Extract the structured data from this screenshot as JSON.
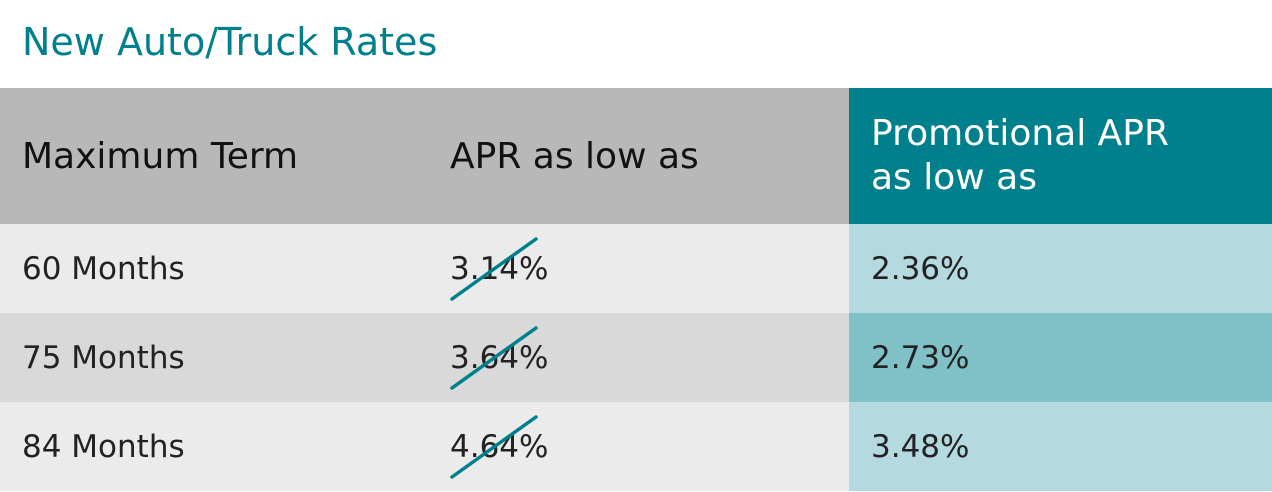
{
  "title": "New Auto/Truck Rates",
  "colors": {
    "accent": "#007f8c",
    "header_gray": "#b8b8b8",
    "row_light": "#ebebeb",
    "row_dark": "#d9d9d9",
    "promo_light": "#b4dadf",
    "promo_dark": "#80c0c7"
  },
  "table": {
    "headers": {
      "term": "Maximum Term",
      "apr": "APR as low as",
      "promo": "Promotional APR as low as"
    },
    "rows": [
      {
        "term": "60 Months",
        "apr": "3.14%",
        "promo": "2.36%"
      },
      {
        "term": "75 Months",
        "apr": "3.64%",
        "promo": "2.73%"
      },
      {
        "term": "84 Months",
        "apr": "4.64%",
        "promo": "3.48%"
      }
    ]
  }
}
